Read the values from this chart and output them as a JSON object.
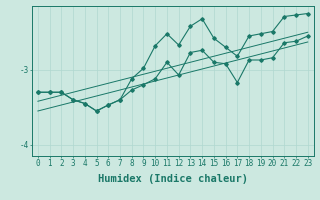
{
  "xlabel": "Humidex (Indice chaleur)",
  "bg_color": "#cce8e0",
  "line_color": "#1a7868",
  "grid_color": "#b0d8d0",
  "x_data": [
    0,
    1,
    2,
    3,
    4,
    5,
    6,
    7,
    8,
    9,
    10,
    11,
    12,
    13,
    14,
    15,
    16,
    17,
    18,
    19,
    20,
    21,
    22,
    23
  ],
  "y_main": [
    -3.3,
    -3.3,
    -3.3,
    -3.4,
    -3.45,
    -3.55,
    -3.47,
    -3.4,
    -3.27,
    -3.2,
    -3.12,
    -2.9,
    -3.07,
    -2.77,
    -2.74,
    -2.9,
    -2.92,
    -3.17,
    -2.87,
    -2.87,
    -2.84,
    -2.64,
    -2.62,
    -2.55
  ],
  "y_upper": [
    -3.3,
    -3.3,
    -3.3,
    -3.4,
    -3.45,
    -3.55,
    -3.47,
    -3.4,
    -3.12,
    -2.98,
    -2.68,
    -2.52,
    -2.67,
    -2.42,
    -2.32,
    -2.58,
    -2.7,
    -2.82,
    -2.55,
    -2.52,
    -2.49,
    -2.29,
    -2.27,
    -2.25
  ],
  "y_reg1": [
    -3.42,
    -3.38,
    -3.34,
    -3.3,
    -3.26,
    -3.22,
    -3.18,
    -3.14,
    -3.1,
    -3.06,
    -3.02,
    -2.98,
    -2.94,
    -2.9,
    -2.86,
    -2.82,
    -2.78,
    -2.74,
    -2.7,
    -2.66,
    -2.62,
    -2.58,
    -2.54,
    -2.5
  ],
  "y_reg2": [
    -3.55,
    -3.51,
    -3.47,
    -3.43,
    -3.39,
    -3.35,
    -3.31,
    -3.27,
    -3.23,
    -3.19,
    -3.15,
    -3.11,
    -3.07,
    -3.03,
    -2.99,
    -2.95,
    -2.91,
    -2.87,
    -2.83,
    -2.79,
    -2.75,
    -2.71,
    -2.67,
    -2.63
  ],
  "ylim": [
    -4.15,
    -2.15
  ],
  "xlim": [
    -0.5,
    23.5
  ],
  "yticks": [
    -4,
    -3
  ],
  "xticks": [
    0,
    1,
    2,
    3,
    4,
    5,
    6,
    7,
    8,
    9,
    10,
    11,
    12,
    13,
    14,
    15,
    16,
    17,
    18,
    19,
    20,
    21,
    22,
    23
  ],
  "tick_fontsize": 5.5,
  "xlabel_fontsize": 7.5
}
